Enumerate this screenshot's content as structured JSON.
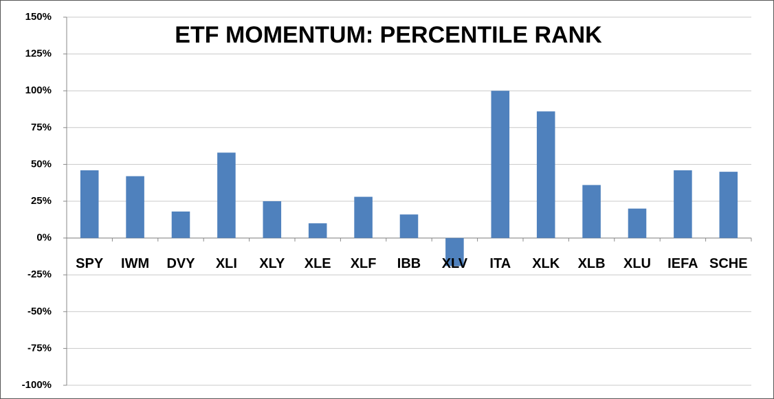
{
  "chart_data": {
    "type": "bar",
    "title": "ETF MOMENTUM: PERCENTILE RANK",
    "categories": [
      "SPY",
      "IWM",
      "DVY",
      "XLI",
      "XLY",
      "XLE",
      "XLF",
      "IBB",
      "XLV",
      "ITA",
      "XLK",
      "XLB",
      "XLU",
      "IEFA",
      "SCHE"
    ],
    "values": [
      46,
      42,
      18,
      58,
      25,
      10,
      28,
      16,
      -19,
      100,
      86,
      36,
      20,
      46,
      45
    ],
    "color": "#4f81bd",
    "ylim": [
      -100,
      150
    ],
    "yticks": [
      {
        "value": -100,
        "label": "-100%"
      },
      {
        "value": -75,
        "label": "-75%"
      },
      {
        "value": -50,
        "label": "-50%"
      },
      {
        "value": -25,
        "label": "-25%"
      },
      {
        "value": 0,
        "label": "0%"
      },
      {
        "value": 25,
        "label": "25%"
      },
      {
        "value": 50,
        "label": "50%"
      },
      {
        "value": 75,
        "label": "75%"
      },
      {
        "value": 100,
        "label": "100%"
      },
      {
        "value": 125,
        "label": "125%"
      },
      {
        "value": 150,
        "label": "150%"
      }
    ],
    "grid": true
  }
}
